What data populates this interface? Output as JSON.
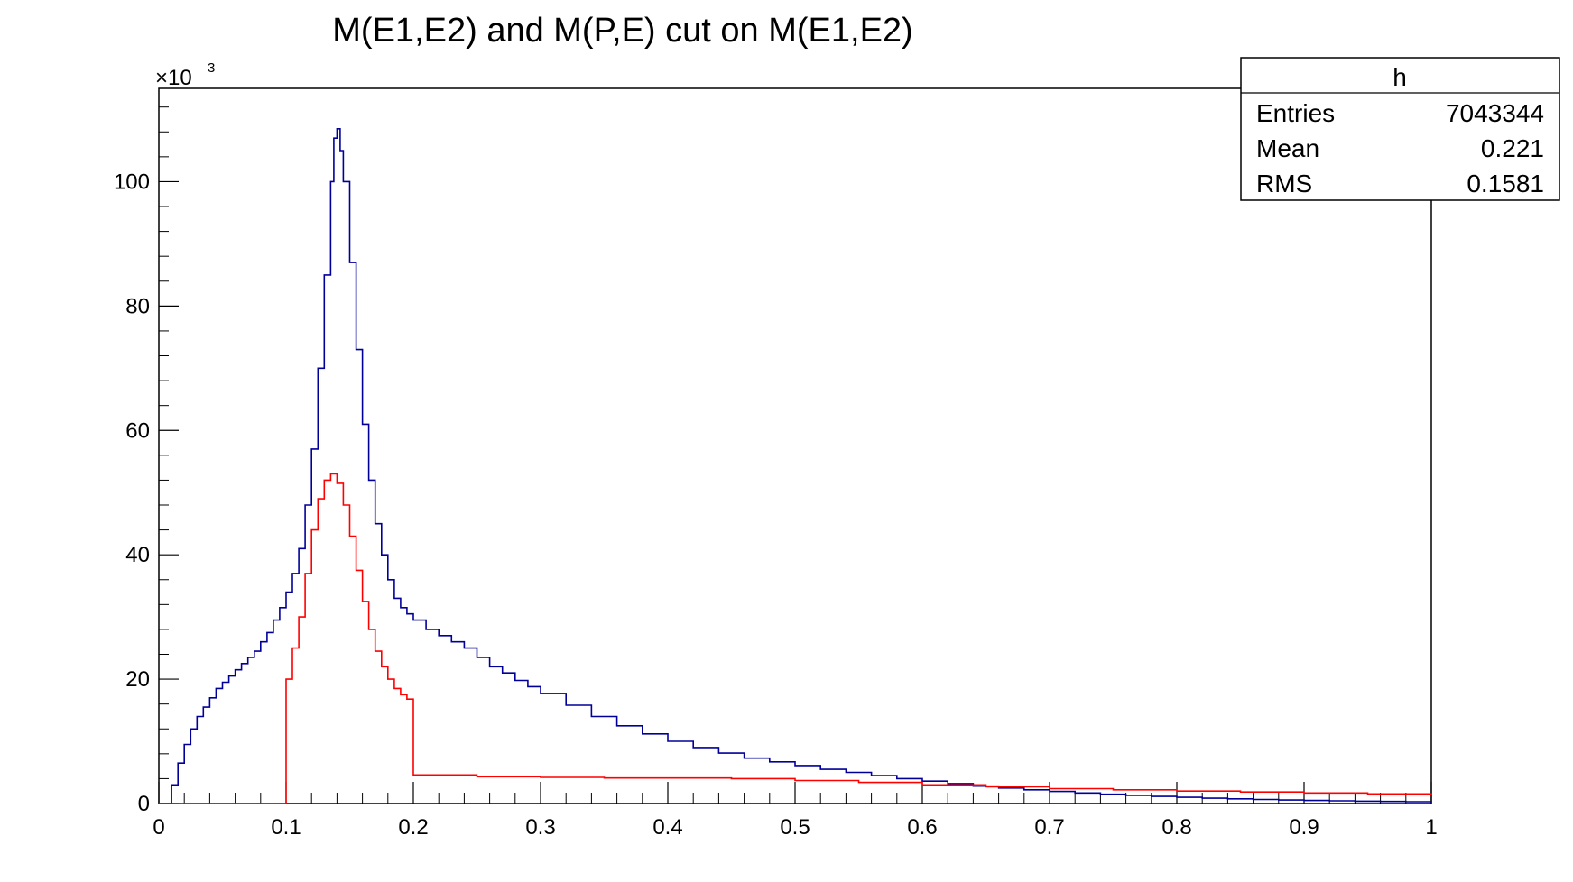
{
  "chart_data": {
    "type": "histogram-step",
    "title": "M(E1,E2) and M(P,E) cut on M(E1,E2)",
    "xlabel": "",
    "ylabel": "",
    "xlim": [
      0,
      1
    ],
    "ylim": [
      0,
      115000
    ],
    "y_multiplier_label": "×10",
    "y_multiplier_exponent": "3",
    "x_ticks": [
      {
        "value": 0,
        "label": "0"
      },
      {
        "value": 0.1,
        "label": "0.1"
      },
      {
        "value": 0.2,
        "label": "0.2"
      },
      {
        "value": 0.3,
        "label": "0.3"
      },
      {
        "value": 0.4,
        "label": "0.4"
      },
      {
        "value": 0.5,
        "label": "0.5"
      },
      {
        "value": 0.6,
        "label": "0.6"
      },
      {
        "value": 0.7,
        "label": "0.7"
      },
      {
        "value": 0.8,
        "label": "0.8"
      },
      {
        "value": 0.9,
        "label": "0.9"
      },
      {
        "value": 1,
        "label": "1"
      }
    ],
    "y_ticks": [
      {
        "value": 0,
        "label": "0"
      },
      {
        "value": 20000,
        "label": "20"
      },
      {
        "value": 40000,
        "label": "40"
      },
      {
        "value": 60000,
        "label": "60"
      },
      {
        "value": 80000,
        "label": "80"
      },
      {
        "value": 100000,
        "label": "100"
      }
    ],
    "series": [
      {
        "color": "#000099",
        "points": [
          [
            0.0,
            0
          ],
          [
            0.005,
            0
          ],
          [
            0.01,
            3000
          ],
          [
            0.015,
            6500
          ],
          [
            0.02,
            9500
          ],
          [
            0.025,
            12000
          ],
          [
            0.03,
            14000
          ],
          [
            0.035,
            15500
          ],
          [
            0.04,
            17000
          ],
          [
            0.045,
            18500
          ],
          [
            0.05,
            19500
          ],
          [
            0.055,
            20500
          ],
          [
            0.06,
            21500
          ],
          [
            0.065,
            22500
          ],
          [
            0.07,
            23500
          ],
          [
            0.075,
            24500
          ],
          [
            0.08,
            26000
          ],
          [
            0.085,
            27500
          ],
          [
            0.09,
            29500
          ],
          [
            0.095,
            31500
          ],
          [
            0.1,
            34000
          ],
          [
            0.105,
            37000
          ],
          [
            0.11,
            41000
          ],
          [
            0.115,
            48000
          ],
          [
            0.12,
            57000
          ],
          [
            0.125,
            70000
          ],
          [
            0.13,
            85000
          ],
          [
            0.135,
            100000
          ],
          [
            0.1375,
            107000
          ],
          [
            0.14,
            108500
          ],
          [
            0.1425,
            105000
          ],
          [
            0.145,
            100000
          ],
          [
            0.15,
            87000
          ],
          [
            0.155,
            73000
          ],
          [
            0.16,
            61000
          ],
          [
            0.165,
            52000
          ],
          [
            0.17,
            45000
          ],
          [
            0.175,
            40000
          ],
          [
            0.18,
            36000
          ],
          [
            0.185,
            33000
          ],
          [
            0.19,
            31500
          ],
          [
            0.195,
            30500
          ],
          [
            0.2,
            29500
          ],
          [
            0.21,
            28000
          ],
          [
            0.22,
            27000
          ],
          [
            0.23,
            26000
          ],
          [
            0.24,
            25000
          ],
          [
            0.25,
            23500
          ],
          [
            0.26,
            22000
          ],
          [
            0.27,
            21000
          ],
          [
            0.28,
            19800
          ],
          [
            0.29,
            18800
          ],
          [
            0.3,
            17700
          ],
          [
            0.32,
            15800
          ],
          [
            0.34,
            14000
          ],
          [
            0.36,
            12500
          ],
          [
            0.38,
            11200
          ],
          [
            0.4,
            10000
          ],
          [
            0.42,
            9000
          ],
          [
            0.44,
            8100
          ],
          [
            0.46,
            7300
          ],
          [
            0.48,
            6700
          ],
          [
            0.5,
            6100
          ],
          [
            0.52,
            5500
          ],
          [
            0.54,
            5000
          ],
          [
            0.56,
            4500
          ],
          [
            0.58,
            4000
          ],
          [
            0.6,
            3600
          ],
          [
            0.62,
            3200
          ],
          [
            0.64,
            2800
          ],
          [
            0.66,
            2500
          ],
          [
            0.68,
            2200
          ],
          [
            0.7,
            1950
          ],
          [
            0.72,
            1700
          ],
          [
            0.74,
            1500
          ],
          [
            0.76,
            1300
          ],
          [
            0.78,
            1150
          ],
          [
            0.8,
            1000
          ],
          [
            0.82,
            850
          ],
          [
            0.84,
            750
          ],
          [
            0.86,
            650
          ],
          [
            0.88,
            560
          ],
          [
            0.9,
            490
          ],
          [
            0.92,
            430
          ],
          [
            0.94,
            380
          ],
          [
            0.96,
            330
          ],
          [
            0.98,
            290
          ],
          [
            1.0,
            260
          ]
        ]
      },
      {
        "color": "#ff0000",
        "points": [
          [
            0.0,
            0
          ],
          [
            0.1,
            0
          ],
          [
            0.1,
            20000
          ],
          [
            0.105,
            25000
          ],
          [
            0.11,
            30000
          ],
          [
            0.115,
            37000
          ],
          [
            0.12,
            44000
          ],
          [
            0.125,
            49000
          ],
          [
            0.13,
            52000
          ],
          [
            0.135,
            53000
          ],
          [
            0.14,
            51500
          ],
          [
            0.145,
            48000
          ],
          [
            0.15,
            43000
          ],
          [
            0.155,
            37500
          ],
          [
            0.16,
            32500
          ],
          [
            0.165,
            28000
          ],
          [
            0.17,
            24500
          ],
          [
            0.175,
            22000
          ],
          [
            0.18,
            20000
          ],
          [
            0.185,
            18500
          ],
          [
            0.19,
            17500
          ],
          [
            0.195,
            16800
          ],
          [
            0.2,
            16500
          ],
          [
            0.2,
            4600
          ],
          [
            0.25,
            4300
          ],
          [
            0.3,
            4200
          ],
          [
            0.35,
            4100
          ],
          [
            0.4,
            4100
          ],
          [
            0.45,
            4000
          ],
          [
            0.5,
            3700
          ],
          [
            0.55,
            3400
          ],
          [
            0.6,
            3000
          ],
          [
            0.65,
            2700
          ],
          [
            0.7,
            2400
          ],
          [
            0.75,
            2200
          ],
          [
            0.8,
            2000
          ],
          [
            0.85,
            1850
          ],
          [
            0.9,
            1700
          ],
          [
            0.95,
            1550
          ],
          [
            1.0,
            1400
          ]
        ]
      }
    ]
  },
  "stats_box": {
    "name": "h",
    "rows": [
      {
        "label": "Entries",
        "value": "7043344"
      },
      {
        "label": "Mean",
        "value": "0.221"
      },
      {
        "label": "RMS",
        "value": "0.1581"
      }
    ]
  }
}
